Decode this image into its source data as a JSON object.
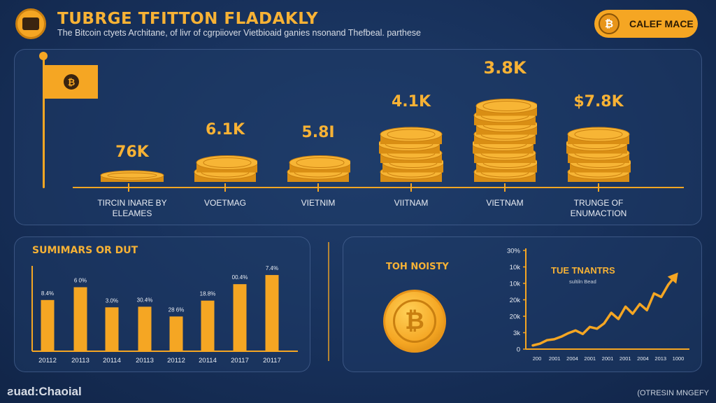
{
  "header": {
    "title": "TUBRGE TFITTON FLADAKLY",
    "subtitle": "The Bitcoin ctyets Architane, of livr of cgrpiiover Vietbioaid ganies nsonand Thefbeal. parthese",
    "pill_label": "CALEF MACE",
    "pill_icon": "bitcoin-icon"
  },
  "colors": {
    "accent": "#f5a623",
    "background": "#17305a",
    "text_light": "#e8ecf3"
  },
  "flag": {
    "icon": "bitcoin-icon"
  },
  "bottom_left": {
    "title": "SUMIMARS OR DUT"
  },
  "bottom_right": {
    "title": "TOH NOISTY",
    "chart_title": "TUE TNANTRS",
    "chart_subtitle": "sultiln Bead"
  },
  "footer": {
    "left": "ƨuad:Chaoial",
    "right": "(OTRESIN MNGEFY"
  },
  "chart_data": [
    {
      "type": "bar",
      "title": "",
      "categories": [
        "TIRCIN INARE BY ELEAMES",
        "VOETMAG",
        "VIETNIM",
        "VIITNAM",
        "VIETNAM",
        "TRUNGE OF ENUMACTION"
      ],
      "category_lines": [
        [
          "TIRCIN INARE BY",
          "ELEAMES"
        ],
        [
          "VOETMAG"
        ],
        [
          "VIETNIM"
        ],
        [
          "VIITNAM"
        ],
        [
          "VIETNAM"
        ],
        [
          "TRUNGE OF",
          "ENUMACTION"
        ]
      ],
      "value_labels": [
        "76K",
        "6.1K",
        "5.8I",
        "4.1K",
        "3.8K",
        "$7.8K"
      ],
      "coin_stacks": [
        1,
        2,
        2,
        5,
        8,
        5
      ]
    },
    {
      "type": "bar",
      "title": "SUMIMARS OR DUT",
      "categories": [
        "20112",
        "20113",
        "20114",
        "20113",
        "20112",
        "20114",
        "20117",
        "20117"
      ],
      "value_labels": [
        "8.4%",
        "6 0%",
        "3.0%",
        "30.4%",
        "28 6%",
        "18.8%",
        "00.4%",
        "7.4%"
      ],
      "values": [
        8.4,
        10.5,
        7.2,
        7.3,
        5.7,
        8.3,
        11.0,
        12.5
      ],
      "ylim": [
        0,
        14
      ]
    },
    {
      "type": "line",
      "title": "TUE TNANTRS",
      "subtitle": "sultiln Bead",
      "y_ticks": [
        "30%",
        "10k",
        "10k",
        "20k",
        "20k",
        "3k",
        "0"
      ],
      "x_ticks": [
        "200",
        "2001",
        "2004",
        "2001",
        "2001",
        "2001",
        "2004",
        "2013",
        "1000"
      ],
      "x": [
        0,
        1,
        2,
        3,
        4,
        5,
        6,
        7,
        8,
        9,
        10,
        11,
        12,
        13,
        14,
        15,
        16,
        17,
        18,
        19,
        20
      ],
      "values": [
        1,
        3,
        7,
        8,
        11,
        15,
        18,
        14,
        22,
        20,
        26,
        38,
        31,
        45,
        37,
        48,
        41,
        60,
        56,
        70,
        80
      ],
      "ylim": [
        0,
        100
      ],
      "has_arrow": true
    }
  ]
}
